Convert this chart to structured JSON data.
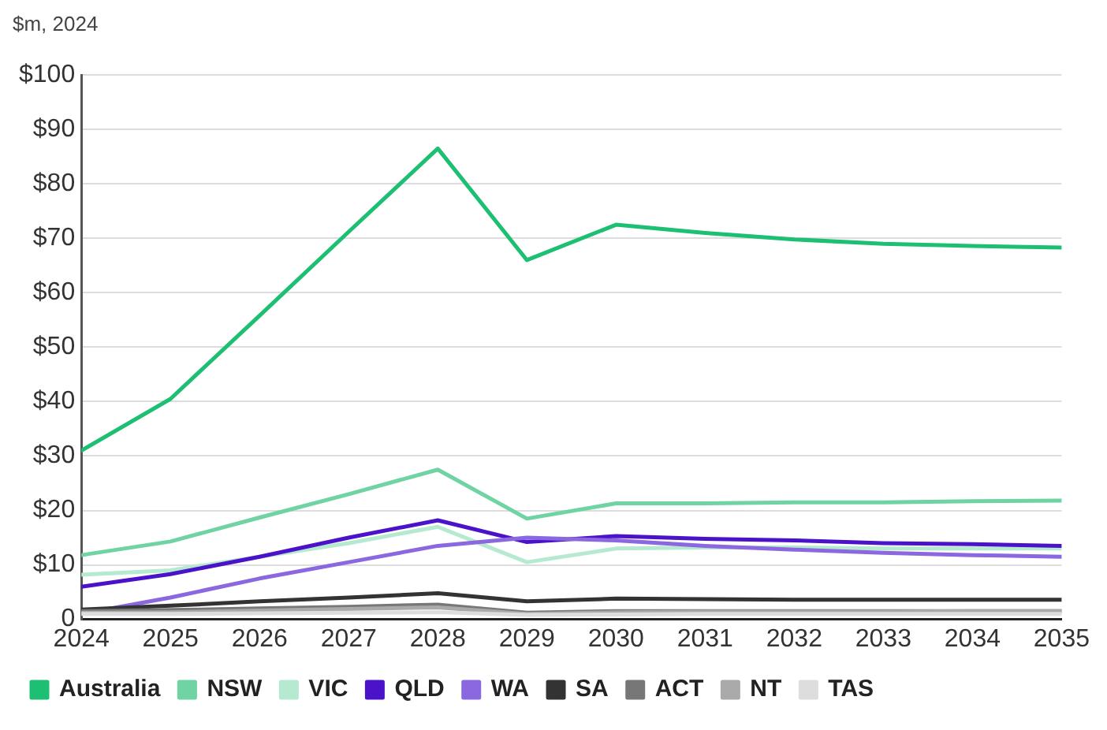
{
  "chart_data": {
    "type": "line",
    "ylabel": "$m, 2024",
    "x": [
      2024,
      2025,
      2026,
      2027,
      2028,
      2029,
      2030,
      2031,
      2032,
      2033,
      2034,
      2035
    ],
    "xticks": [
      2024,
      2025,
      2026,
      2027,
      2028,
      2029,
      2030,
      2031,
      2032,
      2033,
      2034,
      2035
    ],
    "xlim": [
      2024,
      2035
    ],
    "ylim": [
      0,
      100
    ],
    "yticks": [
      0,
      {
        "value": 10,
        "label": "$10"
      },
      {
        "value": 20,
        "label": "$20"
      },
      {
        "value": 30,
        "label": "$30"
      },
      {
        "value": 40,
        "label": "$40"
      },
      {
        "value": 50,
        "label": "$50"
      },
      {
        "value": 60,
        "label": "$60"
      },
      {
        "value": 70,
        "label": "$70"
      },
      {
        "value": 80,
        "label": "$80"
      },
      {
        "value": 90,
        "label": "$90"
      },
      {
        "value": 100,
        "label": "$100"
      }
    ],
    "grid": "y",
    "legend": "bottom",
    "marker": "none",
    "line_style": "solid",
    "series": [
      {
        "name": "Australia",
        "color": "#1dbf73",
        "values": [
          31,
          40.5,
          55.8,
          71.2,
          86.5,
          66,
          72.5,
          71,
          69.8,
          69,
          68.6,
          68.3
        ]
      },
      {
        "name": "NSW",
        "color": "#6fd3a3",
        "values": [
          11.8,
          14.3,
          18.7,
          23,
          27.5,
          18.5,
          21.3,
          21.3,
          21.5,
          21.5,
          21.7,
          21.8
        ]
      },
      {
        "name": "VIC",
        "color": "#b5ead0",
        "values": [
          8.2,
          9,
          11.5,
          14,
          17,
          10.5,
          13,
          13.2,
          13.2,
          13,
          13,
          13
        ]
      },
      {
        "name": "QLD",
        "color": "#4a12c9",
        "values": [
          6,
          8.3,
          11.5,
          15,
          18.2,
          14.2,
          15.3,
          14.8,
          14.5,
          14,
          13.8,
          13.5
        ]
      },
      {
        "name": "WA",
        "color": "#8b68e0",
        "values": [
          1,
          4,
          7.5,
          10.5,
          13.5,
          15,
          14.5,
          13.5,
          12.8,
          12.2,
          11.8,
          11.5
        ]
      },
      {
        "name": "SA",
        "color": "#333333",
        "values": [
          1.8,
          2.5,
          3.3,
          4,
          4.8,
          3.3,
          3.8,
          3.7,
          3.6,
          3.6,
          3.6,
          3.6
        ]
      },
      {
        "name": "ACT",
        "color": "#777777",
        "values": [
          1.5,
          1.7,
          2,
          2.3,
          2.7,
          1.2,
          1.5,
          1.5,
          1.5,
          1.5,
          1.5,
          1.5
        ]
      },
      {
        "name": "NT",
        "color": "#aaaaaa",
        "values": [
          1.2,
          1.3,
          1.6,
          1.9,
          2.2,
          1,
          1.3,
          1.4,
          1.4,
          1.4,
          1.5,
          1.5
        ]
      },
      {
        "name": "TAS",
        "color": "#dddddd",
        "values": [
          1,
          1,
          1.1,
          1.2,
          1.3,
          0.8,
          0.9,
          1,
          1,
          1,
          1,
          1
        ]
      }
    ]
  }
}
